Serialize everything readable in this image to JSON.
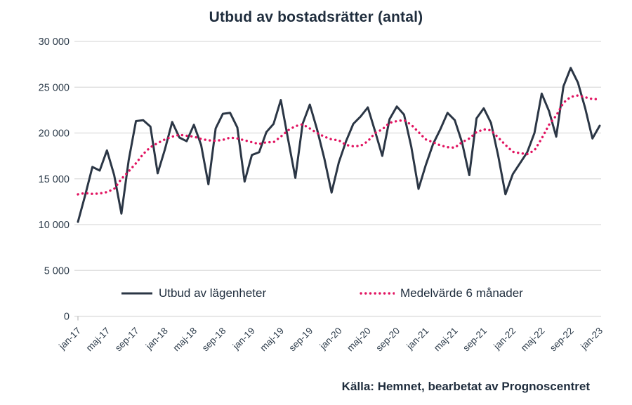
{
  "title": "Utbud av bostadsrätter (antal)",
  "source": "Källa: Hemnet, bearbetat av Prognoscentret",
  "legend": {
    "series1": "Utbud av lägenheter",
    "series2": "Medelvärde 6 månader"
  },
  "colors": {
    "line": "#2b3645",
    "average": "#e11360",
    "grid": "#dcdcdc",
    "tick_text": "#2b3a49",
    "title_text": "#1f2d3d"
  },
  "chart_data": {
    "type": "line",
    "title": "Utbud av bostadsrätter (antal)",
    "xlabel": "",
    "ylabel": "",
    "grid": "horizontal",
    "legend_position": "bottom-inside",
    "ylim": [
      0,
      30000
    ],
    "y_ticks": [
      0,
      5000,
      10000,
      15000,
      20000,
      25000,
      30000
    ],
    "y_tick_labels": [
      "0",
      "5 000",
      "10 000",
      "15 000",
      "20 000",
      "25 000",
      "30 000"
    ],
    "x_tick_labels": [
      "jan-17",
      "maj-17",
      "sep-17",
      "jan-18",
      "maj-18",
      "sep-18",
      "jan-19",
      "maj-19",
      "sep-19",
      "jan-20",
      "maj-20",
      "sep-20",
      "jan-21",
      "maj-21",
      "sep-21",
      "jan-22",
      "maj-22",
      "sep-22",
      "jan-23"
    ],
    "x_tick_every_n_months": 4,
    "x_range": [
      "jan-17",
      "jan-23"
    ],
    "series": [
      {
        "name": "Utbud av lägenheter",
        "style": "solid",
        "color": "#2b3645",
        "values": [
          10300,
          13200,
          16300,
          15900,
          18100,
          15400,
          11200,
          17000,
          21300,
          21400,
          20700,
          15600,
          18200,
          21200,
          19500,
          19100,
          20900,
          18700,
          14400,
          20500,
          22100,
          22200,
          20600,
          14700,
          17600,
          17900,
          20100,
          21000,
          23600,
          19300,
          15100,
          21000,
          23100,
          20400,
          17200,
          13500,
          16800,
          19100,
          21000,
          21800,
          22800,
          20200,
          17500,
          21500,
          22900,
          22000,
          18500,
          13900,
          16500,
          18800,
          20400,
          22200,
          21400,
          19000,
          15400,
          21600,
          22700,
          21100,
          17500,
          13300,
          15500,
          16700,
          17900,
          20000,
          24300,
          22400,
          19600,
          25100,
          27100,
          25500,
          22700,
          19400,
          20800
        ]
      },
      {
        "name": "Medelvärde 6 månader",
        "style": "dotted",
        "color": "#e11360",
        "values": [
          13300,
          13450,
          13350,
          13400,
          13550,
          13900,
          15000,
          15800,
          16700,
          17700,
          18450,
          18900,
          19300,
          19600,
          19800,
          19700,
          19600,
          19350,
          19200,
          19150,
          19250,
          19500,
          19400,
          19200,
          19000,
          18800,
          19000,
          19000,
          19600,
          20300,
          20750,
          20950,
          20500,
          20000,
          19600,
          19300,
          19200,
          18700,
          18550,
          18600,
          19100,
          20000,
          20400,
          21100,
          21300,
          21400,
          20900,
          20100,
          19300,
          19000,
          18650,
          18450,
          18400,
          19000,
          19400,
          20100,
          20400,
          20300,
          19500,
          18700,
          17950,
          17800,
          17700,
          18100,
          19400,
          20900,
          21900,
          23300,
          23950,
          24100,
          23900,
          23700,
          23700
        ]
      }
    ]
  }
}
